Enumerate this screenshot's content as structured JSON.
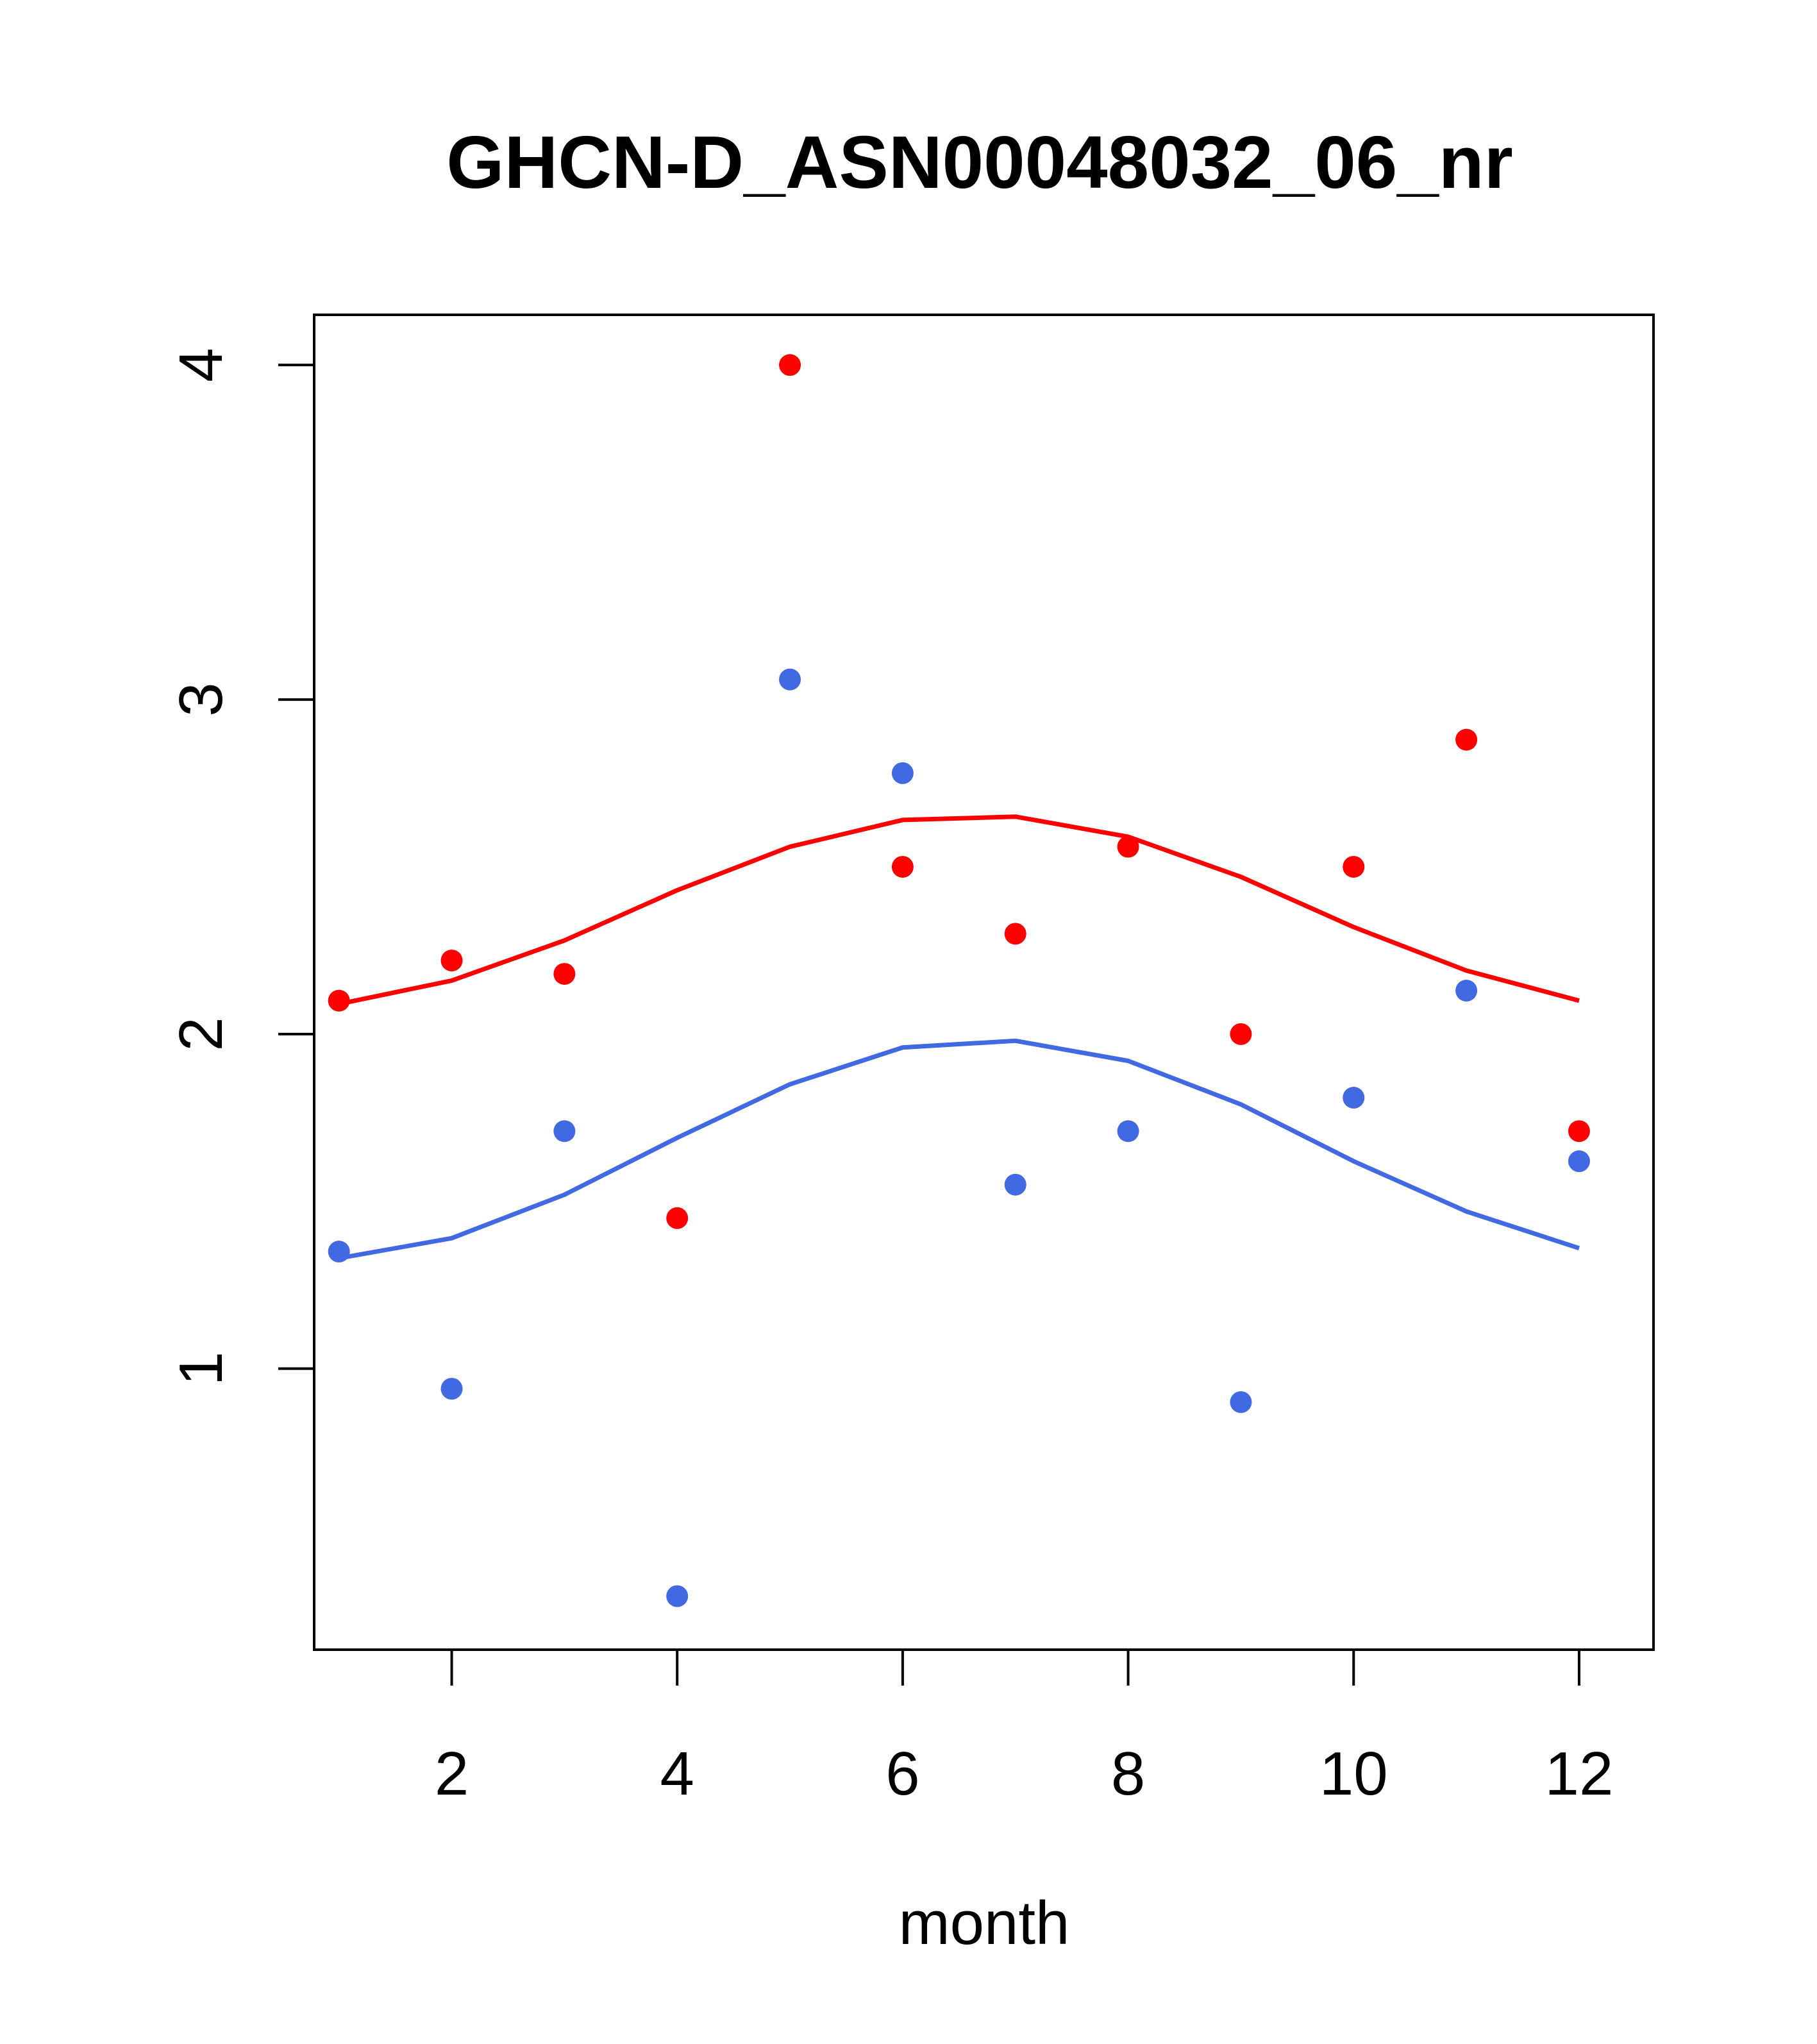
{
  "chart_data": {
    "type": "scatter",
    "title": "GHCN-D_ASN00048032_06_nr",
    "xlabel": "month",
    "ylabel": "",
    "xlim": [
      0.78,
      12.66
    ],
    "ylim": [
      0.16,
      4.15
    ],
    "x_ticks": [
      2,
      4,
      6,
      8,
      10,
      12
    ],
    "y_ticks": [
      1,
      2,
      3,
      4
    ],
    "grid": false,
    "legend": "none",
    "series": [
      {
        "color": "#ff0000",
        "points_x": [
          1,
          2,
          3,
          4,
          5,
          6,
          7,
          8,
          9,
          10,
          11,
          12
        ],
        "points_y": [
          2.1,
          2.22,
          2.18,
          1.45,
          4.0,
          2.5,
          2.3,
          2.56,
          2.0,
          2.5,
          2.88,
          1.71
        ],
        "line_y": [
          2.09,
          2.16,
          2.28,
          2.43,
          2.56,
          2.64,
          2.65,
          2.59,
          2.47,
          2.32,
          2.19,
          2.1
        ]
      },
      {
        "color": "#4169e1",
        "points_x": [
          1,
          2,
          3,
          4,
          5,
          6,
          7,
          8,
          9,
          10,
          11,
          12
        ],
        "points_y": [
          1.35,
          0.94,
          1.71,
          0.32,
          3.06,
          2.78,
          1.55,
          1.71,
          0.9,
          1.81,
          2.13,
          1.62
        ],
        "line_y": [
          1.33,
          1.39,
          1.52,
          1.69,
          1.85,
          1.96,
          1.98,
          1.92,
          1.79,
          1.62,
          1.47,
          1.36
        ]
      }
    ]
  }
}
